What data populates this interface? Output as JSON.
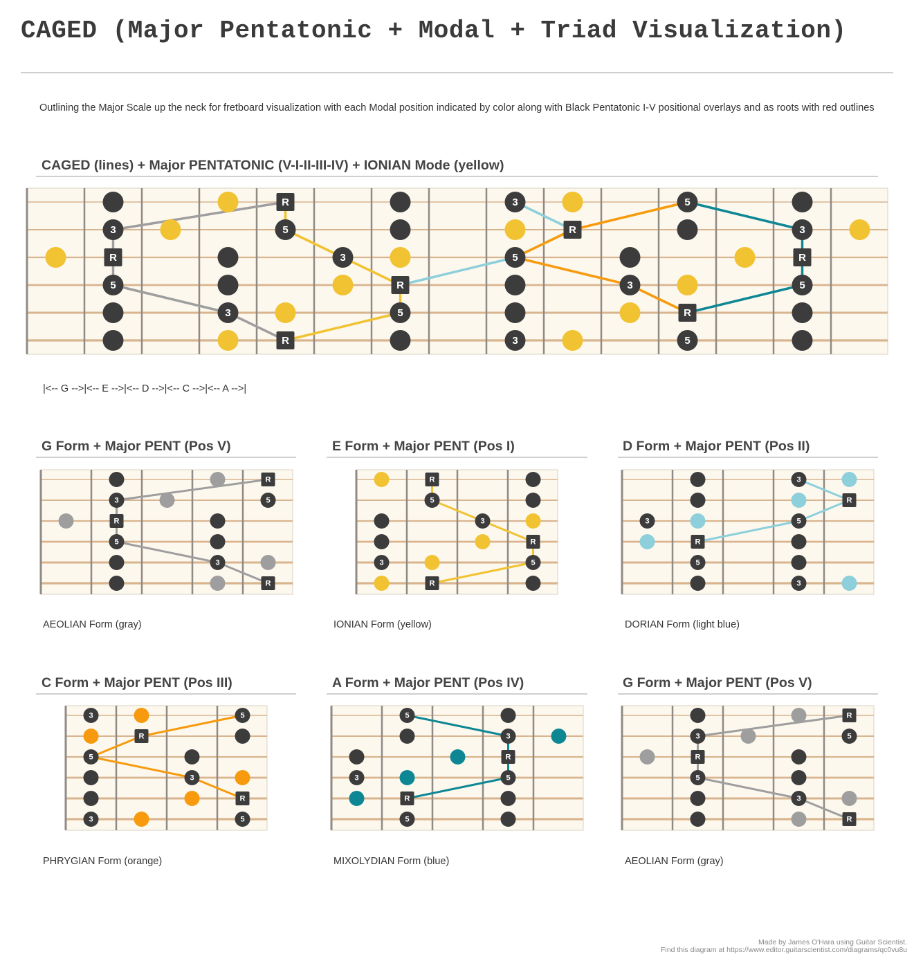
{
  "title": "CAGED (Major Pentatonic + Modal + Triad Visualization)",
  "description": "Outlining the Major Scale up the neck for fretboard visualization with each Modal position indicated by color along with Black Pentatonic I-V positional overlays and as roots with red outlines",
  "main": {
    "title": "CAGED (lines) + Major PENTATONIC (V-I-II-III-IV) + IONIAN Mode (yellow)",
    "legend": "|<-- G -->|<-- E -->|<-- D -->|<-- C -->|<-- A -->|"
  },
  "forms": [
    {
      "title": "G Form + Major PENT (Pos V)",
      "caption": "AEOLIAN Form (gray)"
    },
    {
      "title": "E Form + Major PENT (Pos I)",
      "caption": "IONIAN Form (yellow)"
    },
    {
      "title": "D Form + Major PENT (Pos II)",
      "caption": "DORIAN Form (light blue)"
    },
    {
      "title": "C Form + Major PENT (Pos III)",
      "caption": "PHRYGIAN Form (orange)"
    },
    {
      "title": "A Form + Major PENT (Pos IV)",
      "caption": "MIXOLYDIAN Form (blue)"
    },
    {
      "title": "G Form + Major PENT (Pos V)",
      "caption": "AEOLIAN Form (gray)"
    }
  ],
  "colors": {
    "pentatonic": "#3c3c3c",
    "ionian": "#f1c232",
    "dorian": "#8dcfdb",
    "phrygian": "#f79a0e",
    "mixolydian": "#0e8795",
    "aeolian": "#9e9e9e"
  },
  "diagrams": {
    "main": {
      "frets": 15,
      "notes": [
        {
          "f": 1,
          "s": 3,
          "c": "ionian"
        },
        {
          "f": 2,
          "s": 1,
          "c": "pentatonic"
        },
        {
          "f": 2,
          "s": 2,
          "c": "pentatonic",
          "l": "3"
        },
        {
          "f": 2,
          "s": 3,
          "c": "pentatonic",
          "l": "R",
          "sq": true
        },
        {
          "f": 2,
          "s": 4,
          "c": "pentatonic",
          "l": "5"
        },
        {
          "f": 2,
          "s": 5,
          "c": "pentatonic"
        },
        {
          "f": 2,
          "s": 6,
          "c": "pentatonic"
        },
        {
          "f": 3,
          "s": 2,
          "c": "ionian"
        },
        {
          "f": 4,
          "s": 1,
          "c": "ionian"
        },
        {
          "f": 4,
          "s": 3,
          "c": "pentatonic"
        },
        {
          "f": 4,
          "s": 4,
          "c": "pentatonic"
        },
        {
          "f": 4,
          "s": 5,
          "c": "pentatonic",
          "l": "3"
        },
        {
          "f": 4,
          "s": 6,
          "c": "ionian"
        },
        {
          "f": 5,
          "s": 1,
          "c": "pentatonic",
          "l": "R",
          "sq": true
        },
        {
          "f": 5,
          "s": 2,
          "c": "pentatonic",
          "l": "5"
        },
        {
          "f": 5,
          "s": 5,
          "c": "ionian"
        },
        {
          "f": 5,
          "s": 6,
          "c": "pentatonic",
          "l": "R",
          "sq": true
        },
        {
          "f": 6,
          "s": 3,
          "c": "pentatonic",
          "l": "3"
        },
        {
          "f": 6,
          "s": 4,
          "c": "ionian"
        },
        {
          "f": 7,
          "s": 1,
          "c": "pentatonic"
        },
        {
          "f": 7,
          "s": 2,
          "c": "pentatonic"
        },
        {
          "f": 7,
          "s": 3,
          "c": "ionian"
        },
        {
          "f": 7,
          "s": 4,
          "c": "pentatonic",
          "l": "R",
          "sq": true
        },
        {
          "f": 7,
          "s": 5,
          "c": "pentatonic",
          "l": "5"
        },
        {
          "f": 7,
          "s": 6,
          "c": "pentatonic"
        },
        {
          "f": 9,
          "s": 1,
          "c": "pentatonic",
          "l": "3"
        },
        {
          "f": 9,
          "s": 2,
          "c": "ionian"
        },
        {
          "f": 9,
          "s": 3,
          "c": "pentatonic",
          "l": "5"
        },
        {
          "f": 9,
          "s": 4,
          "c": "pentatonic"
        },
        {
          "f": 9,
          "s": 5,
          "c": "pentatonic"
        },
        {
          "f": 9,
          "s": 6,
          "c": "pentatonic",
          "l": "3"
        },
        {
          "f": 10,
          "s": 1,
          "c": "ionian"
        },
        {
          "f": 10,
          "s": 2,
          "c": "pentatonic",
          "l": "R",
          "sq": true
        },
        {
          "f": 10,
          "s": 6,
          "c": "ionian"
        },
        {
          "f": 11,
          "s": 3,
          "c": "pentatonic"
        },
        {
          "f": 11,
          "s": 4,
          "c": "pentatonic",
          "l": "3"
        },
        {
          "f": 11,
          "s": 5,
          "c": "ionian"
        },
        {
          "f": 12,
          "s": 1,
          "c": "pentatonic",
          "l": "5"
        },
        {
          "f": 12,
          "s": 2,
          "c": "pentatonic"
        },
        {
          "f": 12,
          "s": 4,
          "c": "ionian"
        },
        {
          "f": 12,
          "s": 5,
          "c": "pentatonic",
          "l": "R",
          "sq": true
        },
        {
          "f": 12,
          "s": 6,
          "c": "pentatonic",
          "l": "5"
        },
        {
          "f": 13,
          "s": 3,
          "c": "ionian"
        },
        {
          "f": 14,
          "s": 1,
          "c": "pentatonic"
        },
        {
          "f": 14,
          "s": 2,
          "c": "pentatonic",
          "l": "3"
        },
        {
          "f": 14,
          "s": 3,
          "c": "pentatonic",
          "l": "R",
          "sq": true
        },
        {
          "f": 14,
          "s": 4,
          "c": "pentatonic",
          "l": "5"
        },
        {
          "f": 14,
          "s": 5,
          "c": "pentatonic"
        },
        {
          "f": 14,
          "s": 6,
          "c": "pentatonic"
        },
        {
          "f": 15,
          "s": 2,
          "c": "ionian"
        }
      ],
      "lines": [
        {
          "c": "aeolian",
          "p": [
            [
              2,
              2
            ],
            [
              5,
              1
            ]
          ]
        },
        {
          "c": "aeolian",
          "p": [
            [
              2,
              2
            ],
            [
              2,
              3
            ],
            [
              2,
              4
            ]
          ]
        },
        {
          "c": "aeolian",
          "p": [
            [
              2,
              4
            ],
            [
              4,
              5
            ],
            [
              5,
              6
            ]
          ]
        },
        {
          "c": "ionian",
          "p": [
            [
              5,
              1
            ],
            [
              5,
              2
            ],
            [
              6,
              3
            ],
            [
              7,
              4
            ],
            [
              7,
              5
            ],
            [
              5,
              6
            ]
          ]
        },
        {
          "c": "dorian",
          "p": [
            [
              7,
              4
            ],
            [
              9,
              3
            ],
            [
              10,
              2
            ],
            [
              9,
              1
            ]
          ]
        },
        {
          "c": "phrygian",
          "p": [
            [
              9,
              3
            ],
            [
              10,
              2
            ],
            [
              12,
              1
            ]
          ]
        },
        {
          "c": "phrygian",
          "p": [
            [
              9,
              3
            ],
            [
              11,
              4
            ],
            [
              12,
              5
            ]
          ]
        },
        {
          "c": "mixolydian",
          "p": [
            [
              12,
              1
            ],
            [
              14,
              2
            ],
            [
              14,
              3
            ],
            [
              14,
              4
            ],
            [
              12,
              5
            ]
          ]
        }
      ]
    },
    "g1": {
      "frets": 5,
      "notes": [
        {
          "f": 1,
          "s": 3,
          "c": "aeolian"
        },
        {
          "f": 2,
          "s": 1,
          "c": "pentatonic"
        },
        {
          "f": 2,
          "s": 2,
          "c": "pentatonic",
          "l": "3"
        },
        {
          "f": 2,
          "s": 3,
          "c": "pentatonic",
          "l": "R",
          "sq": true
        },
        {
          "f": 2,
          "s": 4,
          "c": "pentatonic",
          "l": "5"
        },
        {
          "f": 2,
          "s": 5,
          "c": "pentatonic"
        },
        {
          "f": 2,
          "s": 6,
          "c": "pentatonic"
        },
        {
          "f": 3,
          "s": 2,
          "c": "aeolian"
        },
        {
          "f": 4,
          "s": 1,
          "c": "aeolian"
        },
        {
          "f": 4,
          "s": 3,
          "c": "pentatonic"
        },
        {
          "f": 4,
          "s": 4,
          "c": "pentatonic"
        },
        {
          "f": 4,
          "s": 5,
          "c": "pentatonic",
          "l": "3"
        },
        {
          "f": 4,
          "s": 6,
          "c": "aeolian"
        },
        {
          "f": 5,
          "s": 1,
          "c": "pentatonic",
          "l": "R",
          "sq": true
        },
        {
          "f": 5,
          "s": 2,
          "c": "pentatonic",
          "l": "5"
        },
        {
          "f": 5,
          "s": 5,
          "c": "aeolian"
        },
        {
          "f": 5,
          "s": 6,
          "c": "pentatonic",
          "l": "R",
          "sq": true
        }
      ],
      "lines": [
        {
          "c": "aeolian",
          "p": [
            [
              2,
              2
            ],
            [
              5,
              1
            ]
          ]
        },
        {
          "c": "aeolian",
          "p": [
            [
              2,
              2
            ],
            [
              2,
              3
            ],
            [
              2,
              4
            ]
          ]
        },
        {
          "c": "aeolian",
          "p": [
            [
              2,
              4
            ],
            [
              4,
              5
            ],
            [
              5,
              6
            ]
          ]
        }
      ]
    },
    "e": {
      "frets": 4,
      "notes": [
        {
          "f": 1,
          "s": 1,
          "c": "ionian"
        },
        {
          "f": 1,
          "s": 3,
          "c": "pentatonic"
        },
        {
          "f": 1,
          "s": 4,
          "c": "pentatonic"
        },
        {
          "f": 1,
          "s": 5,
          "c": "pentatonic",
          "l": "3"
        },
        {
          "f": 1,
          "s": 6,
          "c": "ionian"
        },
        {
          "f": 2,
          "s": 1,
          "c": "pentatonic",
          "l": "R",
          "sq": true
        },
        {
          "f": 2,
          "s": 2,
          "c": "pentatonic",
          "l": "5"
        },
        {
          "f": 2,
          "s": 5,
          "c": "ionian"
        },
        {
          "f": 2,
          "s": 6,
          "c": "pentatonic",
          "l": "R",
          "sq": true
        },
        {
          "f": 3,
          "s": 3,
          "c": "pentatonic",
          "l": "3"
        },
        {
          "f": 3,
          "s": 4,
          "c": "ionian"
        },
        {
          "f": 4,
          "s": 1,
          "c": "pentatonic"
        },
        {
          "f": 4,
          "s": 2,
          "c": "pentatonic"
        },
        {
          "f": 4,
          "s": 3,
          "c": "ionian"
        },
        {
          "f": 4,
          "s": 4,
          "c": "pentatonic",
          "l": "R",
          "sq": true
        },
        {
          "f": 4,
          "s": 5,
          "c": "pentatonic",
          "l": "5"
        },
        {
          "f": 4,
          "s": 6,
          "c": "pentatonic"
        }
      ],
      "lines": [
        {
          "c": "ionian",
          "p": [
            [
              2,
              1
            ],
            [
              2,
              2
            ],
            [
              3,
              3
            ],
            [
              4,
              4
            ],
            [
              4,
              5
            ],
            [
              2,
              6
            ]
          ]
        }
      ]
    },
    "d": {
      "frets": 5,
      "notes": [
        {
          "f": 1,
          "s": 3,
          "c": "pentatonic",
          "l": "3"
        },
        {
          "f": 1,
          "s": 4,
          "c": "dorian"
        },
        {
          "f": 2,
          "s": 1,
          "c": "pentatonic"
        },
        {
          "f": 2,
          "s": 2,
          "c": "pentatonic"
        },
        {
          "f": 2,
          "s": 3,
          "c": "dorian"
        },
        {
          "f": 2,
          "s": 4,
          "c": "pentatonic",
          "l": "R",
          "sq": true
        },
        {
          "f": 2,
          "s": 5,
          "c": "pentatonic",
          "l": "5"
        },
        {
          "f": 2,
          "s": 6,
          "c": "pentatonic"
        },
        {
          "f": 4,
          "s": 1,
          "c": "pentatonic",
          "l": "3"
        },
        {
          "f": 4,
          "s": 2,
          "c": "dorian"
        },
        {
          "f": 4,
          "s": 3,
          "c": "pentatonic",
          "l": "5"
        },
        {
          "f": 4,
          "s": 4,
          "c": "pentatonic"
        },
        {
          "f": 4,
          "s": 5,
          "c": "pentatonic"
        },
        {
          "f": 4,
          "s": 6,
          "c": "pentatonic",
          "l": "3"
        },
        {
          "f": 5,
          "s": 1,
          "c": "dorian"
        },
        {
          "f": 5,
          "s": 2,
          "c": "pentatonic",
          "l": "R",
          "sq": true
        },
        {
          "f": 5,
          "s": 6,
          "c": "dorian"
        }
      ],
      "lines": [
        {
          "c": "dorian",
          "p": [
            [
              2,
              4
            ],
            [
              4,
              3
            ],
            [
              5,
              2
            ],
            [
              4,
              1
            ]
          ]
        }
      ]
    },
    "c": {
      "frets": 4,
      "notes": [
        {
          "f": 1,
          "s": 1,
          "c": "pentatonic",
          "l": "3"
        },
        {
          "f": 1,
          "s": 2,
          "c": "phrygian"
        },
        {
          "f": 1,
          "s": 3,
          "c": "pentatonic",
          "l": "5"
        },
        {
          "f": 1,
          "s": 4,
          "c": "pentatonic"
        },
        {
          "f": 1,
          "s": 5,
          "c": "pentatonic"
        },
        {
          "f": 1,
          "s": 6,
          "c": "pentatonic",
          "l": "3"
        },
        {
          "f": 2,
          "s": 1,
          "c": "phrygian"
        },
        {
          "f": 2,
          "s": 2,
          "c": "pentatonic",
          "l": "R",
          "sq": true
        },
        {
          "f": 2,
          "s": 6,
          "c": "phrygian"
        },
        {
          "f": 3,
          "s": 3,
          "c": "pentatonic"
        },
        {
          "f": 3,
          "s": 4,
          "c": "pentatonic",
          "l": "3"
        },
        {
          "f": 3,
          "s": 5,
          "c": "phrygian"
        },
        {
          "f": 4,
          "s": 1,
          "c": "pentatonic",
          "l": "5"
        },
        {
          "f": 4,
          "s": 2,
          "c": "pentatonic"
        },
        {
          "f": 4,
          "s": 4,
          "c": "phrygian"
        },
        {
          "f": 4,
          "s": 5,
          "c": "pentatonic",
          "l": "R",
          "sq": true
        },
        {
          "f": 4,
          "s": 6,
          "c": "pentatonic",
          "l": "5"
        }
      ],
      "lines": [
        {
          "c": "phrygian",
          "p": [
            [
              1,
              3
            ],
            [
              2,
              2
            ],
            [
              4,
              1
            ]
          ]
        },
        {
          "c": "phrygian",
          "p": [
            [
              1,
              3
            ],
            [
              3,
              4
            ],
            [
              4,
              5
            ]
          ]
        }
      ]
    },
    "a": {
      "frets": 5,
      "notes": [
        {
          "f": 1,
          "s": 3,
          "c": "pentatonic"
        },
        {
          "f": 1,
          "s": 4,
          "c": "pentatonic",
          "l": "3"
        },
        {
          "f": 1,
          "s": 5,
          "c": "mixolydian"
        },
        {
          "f": 2,
          "s": 1,
          "c": "pentatonic",
          "l": "5"
        },
        {
          "f": 2,
          "s": 2,
          "c": "pentatonic"
        },
        {
          "f": 2,
          "s": 4,
          "c": "mixolydian"
        },
        {
          "f": 2,
          "s": 5,
          "c": "pentatonic",
          "l": "R",
          "sq": true
        },
        {
          "f": 2,
          "s": 6,
          "c": "pentatonic",
          "l": "5"
        },
        {
          "f": 3,
          "s": 3,
          "c": "mixolydian"
        },
        {
          "f": 4,
          "s": 1,
          "c": "pentatonic"
        },
        {
          "f": 4,
          "s": 2,
          "c": "pentatonic",
          "l": "3"
        },
        {
          "f": 4,
          "s": 3,
          "c": "pentatonic",
          "l": "R",
          "sq": true
        },
        {
          "f": 4,
          "s": 4,
          "c": "pentatonic",
          "l": "5"
        },
        {
          "f": 4,
          "s": 5,
          "c": "pentatonic"
        },
        {
          "f": 4,
          "s": 6,
          "c": "pentatonic"
        },
        {
          "f": 5,
          "s": 2,
          "c": "mixolydian"
        }
      ],
      "lines": [
        {
          "c": "mixolydian",
          "p": [
            [
              2,
              1
            ],
            [
              4,
              2
            ],
            [
              4,
              3
            ],
            [
              4,
              4
            ],
            [
              2,
              5
            ]
          ]
        }
      ]
    }
  }
}
